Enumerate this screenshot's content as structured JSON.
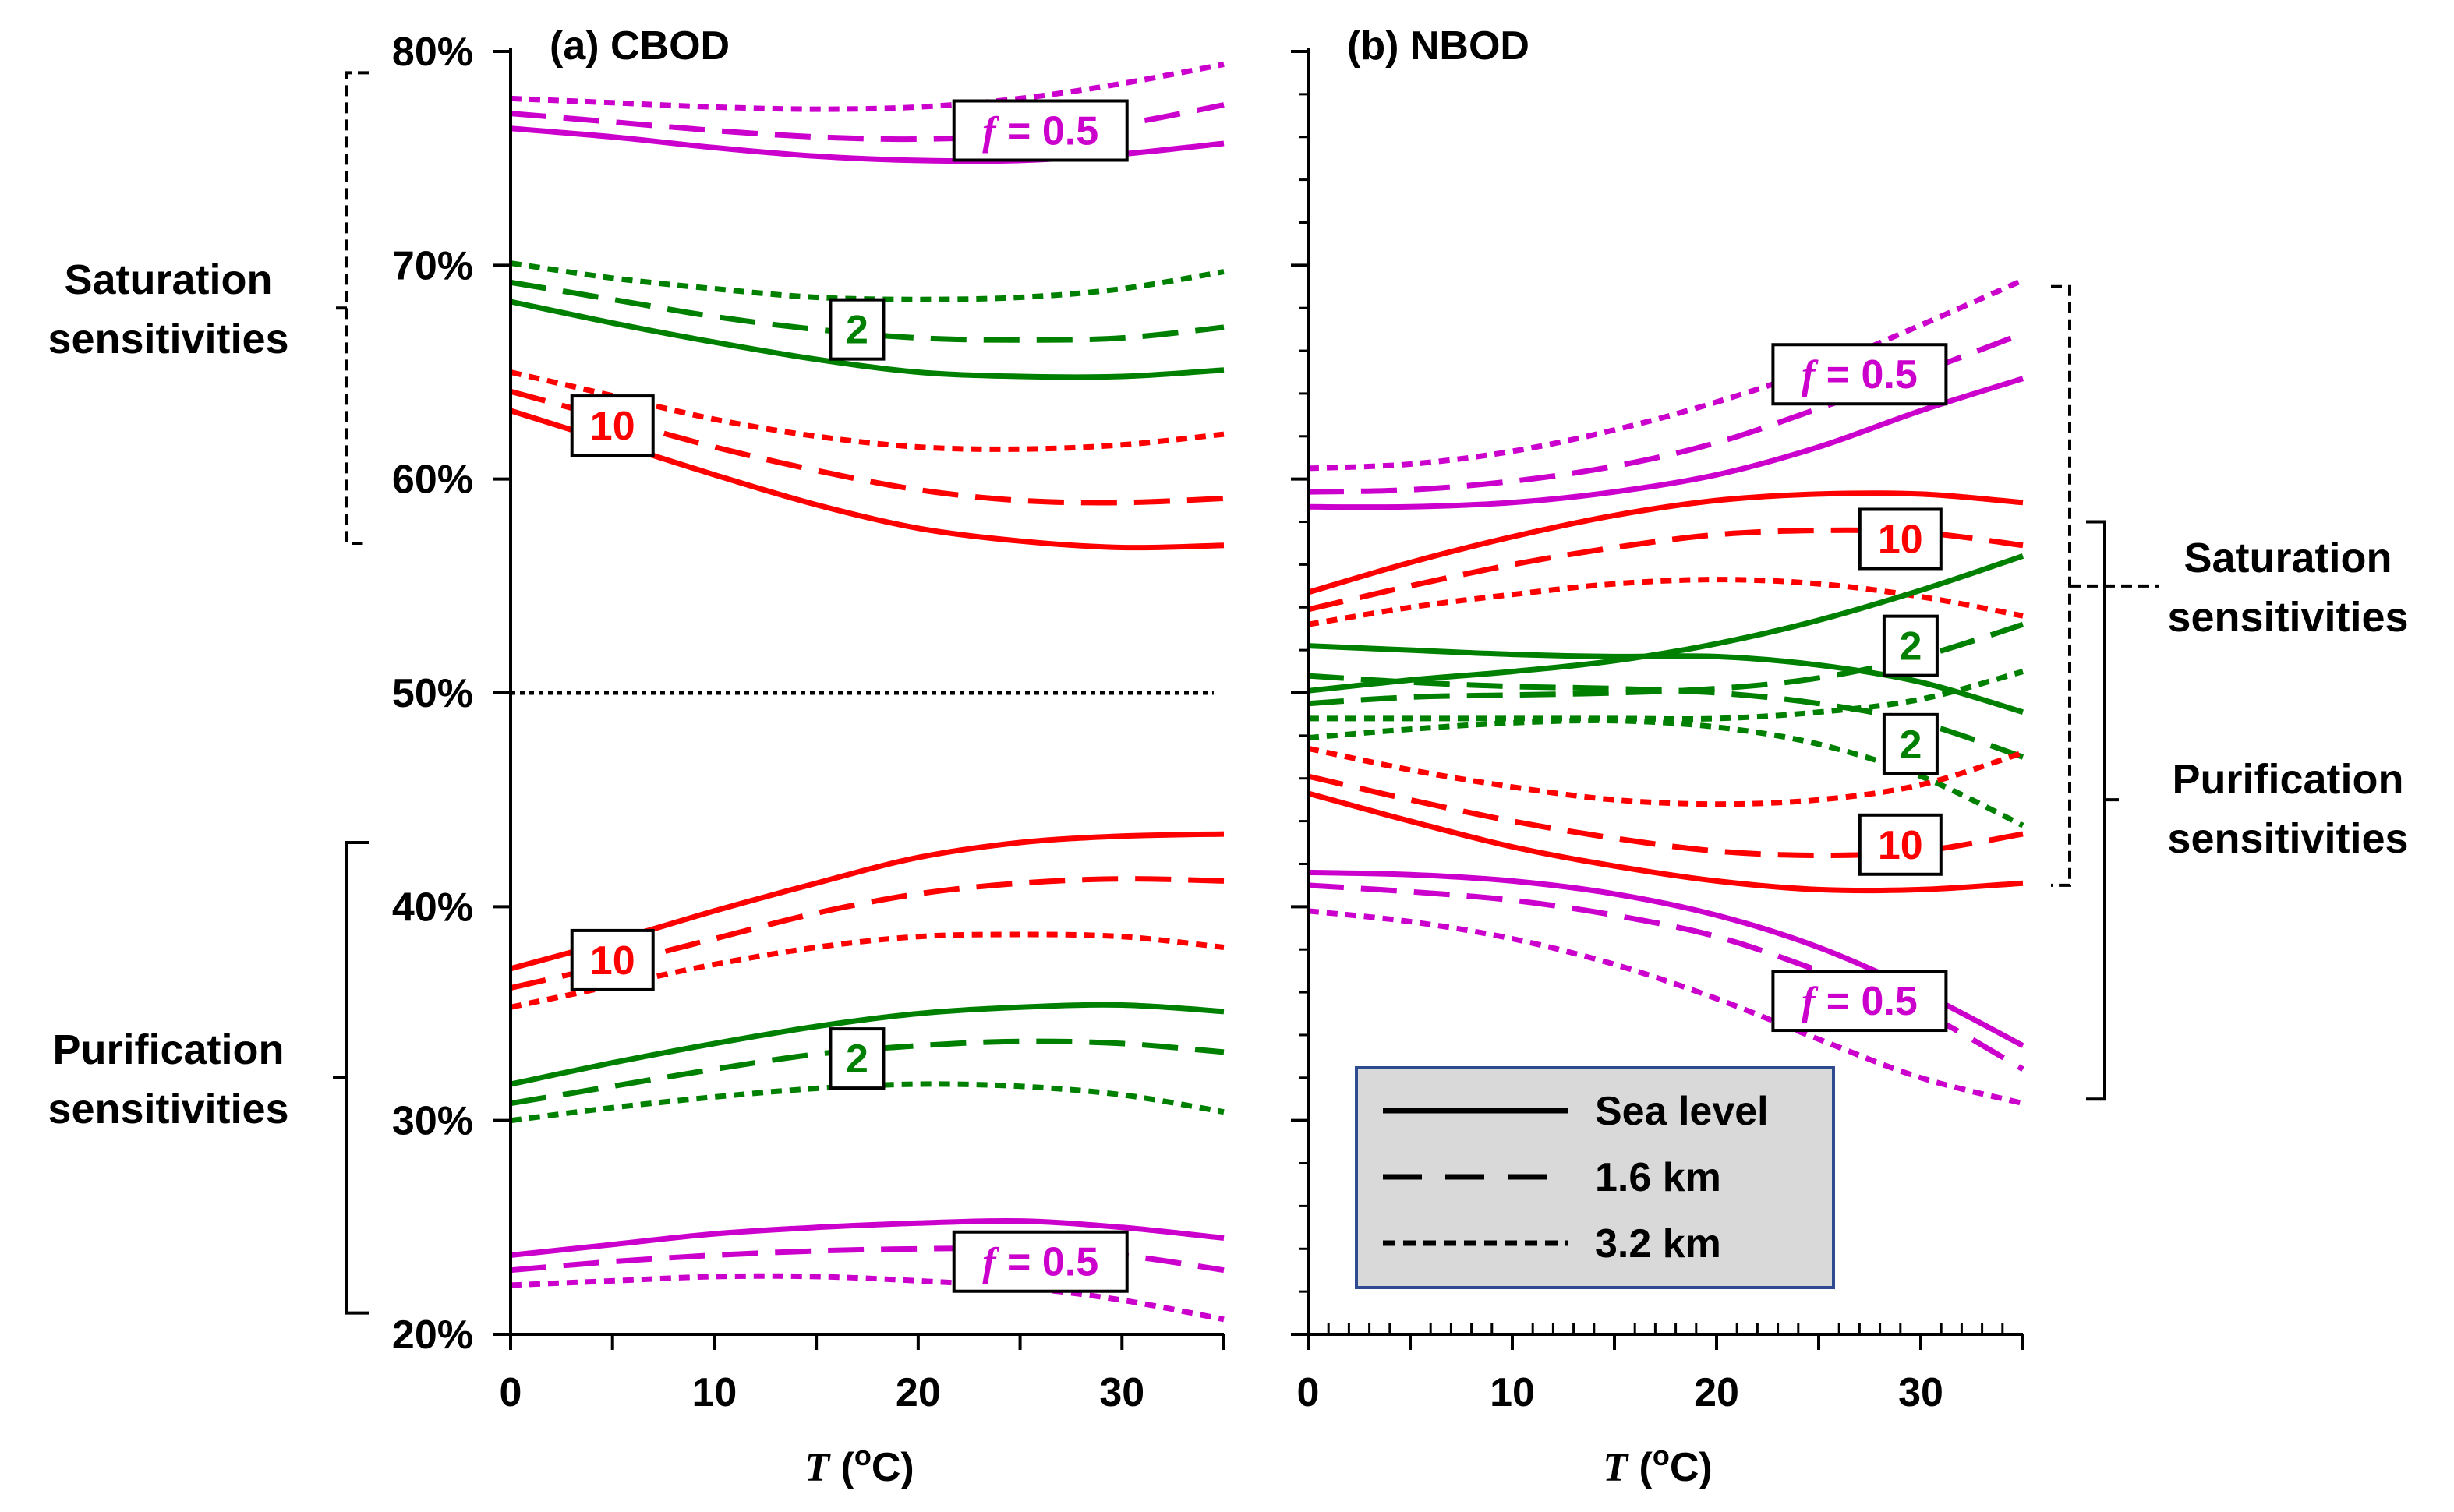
{
  "chart_data": [
    {
      "type": "line",
      "panel": "a",
      "title": "(a) CBOD",
      "xlabel": "T (oC)",
      "ylabel": "",
      "xlim": [
        0,
        35
      ],
      "ylim": [
        20,
        80
      ],
      "x_ticks": [
        0,
        10,
        20,
        30
      ],
      "y_ticks": [
        20,
        30,
        40,
        50,
        60,
        70,
        80
      ],
      "y_tick_labels": [
        "20%",
        "30%",
        "40%",
        "50%",
        "60%",
        "70%",
        "80%"
      ],
      "x": [
        0,
        5,
        10,
        15,
        20,
        25,
        30,
        35
      ],
      "reference_line": {
        "y": 50,
        "x_range": [
          0,
          34.5
        ],
        "style": "dotted"
      },
      "series": [
        {
          "name": "Saturation f=0.5 Sea level",
          "color": "#cc00cc",
          "style": "solid",
          "values": [
            76.4,
            76.0,
            75.5,
            75.1,
            74.9,
            74.9,
            75.2,
            75.7
          ]
        },
        {
          "name": "Saturation f=0.5 1.6 km",
          "color": "#cc00cc",
          "style": "dashed",
          "values": [
            77.1,
            76.7,
            76.3,
            76.0,
            75.9,
            76.1,
            76.6,
            77.5
          ]
        },
        {
          "name": "Saturation f=0.5 3.2 km",
          "color": "#cc00cc",
          "style": "dotted",
          "values": [
            77.8,
            77.6,
            77.4,
            77.3,
            77.4,
            77.8,
            78.5,
            79.4
          ]
        },
        {
          "name": "Saturation f=2 Sea level",
          "color": "#008000",
          "style": "solid",
          "values": [
            68.3,
            67.3,
            66.4,
            65.6,
            65.0,
            64.8,
            64.8,
            65.1
          ]
        },
        {
          "name": "Saturation f=2 1.6 km",
          "color": "#008000",
          "style": "dashed",
          "values": [
            69.2,
            68.4,
            67.6,
            67.0,
            66.6,
            66.5,
            66.6,
            67.1
          ]
        },
        {
          "name": "Saturation f=2 3.2 km",
          "color": "#008000",
          "style": "dotted",
          "values": [
            70.1,
            69.4,
            68.9,
            68.5,
            68.4,
            68.5,
            68.9,
            69.7
          ]
        },
        {
          "name": "Saturation f=10 Sea level",
          "color": "#ff0000",
          "style": "solid",
          "values": [
            63.2,
            61.7,
            60.2,
            58.8,
            57.7,
            57.1,
            56.8,
            56.9
          ]
        },
        {
          "name": "Saturation f=10 1.6 km",
          "color": "#ff0000",
          "style": "dashed",
          "values": [
            64.1,
            62.8,
            61.5,
            60.4,
            59.5,
            59.0,
            58.9,
            59.1
          ]
        },
        {
          "name": "Saturation f=10 3.2 km",
          "color": "#ff0000",
          "style": "dotted",
          "values": [
            65.0,
            63.9,
            62.8,
            62.0,
            61.5,
            61.4,
            61.6,
            62.1
          ]
        },
        {
          "name": "Purification f=10 Sea level",
          "color": "#ff0000",
          "style": "solid",
          "values": [
            37.1,
            38.4,
            39.8,
            41.1,
            42.3,
            43.0,
            43.3,
            43.4
          ]
        },
        {
          "name": "Purification f=10 1.6 km",
          "color": "#ff0000",
          "style": "dashed",
          "values": [
            36.2,
            37.3,
            38.5,
            39.7,
            40.6,
            41.1,
            41.3,
            41.2
          ]
        },
        {
          "name": "Purification f=10 3.2 km",
          "color": "#ff0000",
          "style": "dotted",
          "values": [
            35.3,
            36.3,
            37.3,
            38.1,
            38.6,
            38.7,
            38.6,
            38.1
          ]
        },
        {
          "name": "Purification f=2 Sea level",
          "color": "#008000",
          "style": "solid",
          "values": [
            31.7,
            32.7,
            33.6,
            34.4,
            35.0,
            35.3,
            35.4,
            35.1
          ]
        },
        {
          "name": "Purification f=2 1.6 km",
          "color": "#008000",
          "style": "dashed",
          "values": [
            30.8,
            31.6,
            32.4,
            33.1,
            33.5,
            33.7,
            33.6,
            33.2
          ]
        },
        {
          "name": "Purification f=2 3.2 km",
          "color": "#008000",
          "style": "dotted",
          "values": [
            30.0,
            30.6,
            31.1,
            31.5,
            31.7,
            31.6,
            31.2,
            30.4
          ]
        },
        {
          "name": "Purification f=0.5 Sea level",
          "color": "#cc00cc",
          "style": "solid",
          "values": [
            23.7,
            24.2,
            24.7,
            25.0,
            25.2,
            25.3,
            25.0,
            24.5
          ]
        },
        {
          "name": "Purification f=0.5 1.6 km",
          "color": "#cc00cc",
          "style": "dashed",
          "values": [
            23.0,
            23.4,
            23.7,
            23.9,
            24.0,
            24.0,
            23.7,
            23.0
          ]
        },
        {
          "name": "Purification f=0.5 3.2 km",
          "color": "#cc00cc",
          "style": "dotted",
          "values": [
            22.3,
            22.5,
            22.7,
            22.7,
            22.5,
            22.2,
            21.6,
            20.7
          ]
        }
      ],
      "box_labels": [
        {
          "text": "f = 0.5",
          "italic_prefix": "f",
          "color": "#cc00cc",
          "x": 26,
          "y": 76.3
        },
        {
          "text": "2",
          "color": "#008000",
          "x": 17,
          "y": 67.0
        },
        {
          "text": "10",
          "color": "#ff0000",
          "x": 5,
          "y": 62.5
        },
        {
          "text": "10",
          "color": "#ff0000",
          "x": 5,
          "y": 37.5
        },
        {
          "text": "2",
          "color": "#008000",
          "x": 17,
          "y": 32.9
        },
        {
          "text": "f = 0.5",
          "italic_prefix": "f",
          "color": "#cc00cc",
          "x": 26,
          "y": 23.4
        }
      ],
      "side_labels": [
        {
          "lines": [
            "Saturation",
            "sensitivities"
          ],
          "range": [
            57,
            79
          ]
        },
        {
          "lines": [
            "Purification",
            "sensitivities"
          ],
          "range": [
            21,
            43
          ]
        }
      ]
    },
    {
      "type": "line",
      "panel": "b",
      "title": "(b) NBOD",
      "xlabel": "T (oC)",
      "ylabel": "",
      "xlim": [
        0,
        35
      ],
      "ylim": [
        20,
        80
      ],
      "x_ticks": [
        0,
        10,
        20,
        30
      ],
      "y_ticks": [
        20,
        30,
        40,
        50,
        60,
        70,
        80
      ],
      "x": [
        0,
        5,
        10,
        15,
        20,
        25,
        30,
        35
      ],
      "series": [
        {
          "name": "Saturation f=0.5 Sea level",
          "color": "#cc00cc",
          "style": "solid",
          "values": [
            58.7,
            58.7,
            58.9,
            59.4,
            60.2,
            61.5,
            63.2,
            64.7
          ]
        },
        {
          "name": "Saturation f=0.5 1.6 km",
          "color": "#cc00cc",
          "style": "dashed",
          "values": [
            59.4,
            59.5,
            59.9,
            60.6,
            61.7,
            63.3,
            65.0,
            66.8
          ]
        },
        {
          "name": "Saturation f=0.5 3.2 km",
          "color": "#cc00cc",
          "style": "dotted",
          "values": [
            60.5,
            60.7,
            61.3,
            62.3,
            63.6,
            65.2,
            67.2,
            69.3
          ]
        },
        {
          "name": "Saturation f=10 Sea level",
          "color": "#ff0000",
          "style": "solid",
          "values": [
            54.7,
            56.1,
            57.3,
            58.3,
            59.0,
            59.3,
            59.3,
            58.9
          ]
        },
        {
          "name": "Saturation f=10 1.6 km",
          "color": "#ff0000",
          "style": "dashed",
          "values": [
            53.9,
            55.0,
            56.0,
            56.8,
            57.4,
            57.6,
            57.5,
            56.9
          ]
        },
        {
          "name": "Saturation f=10 3.2 km",
          "color": "#ff0000",
          "style": "dotted",
          "values": [
            53.2,
            54.0,
            54.6,
            55.1,
            55.3,
            55.1,
            54.5,
            53.6
          ]
        },
        {
          "name": "Saturation f=2 Sea level",
          "color": "#008000",
          "style": "solid",
          "values": [
            50.1,
            50.6,
            51.0,
            51.5,
            52.3,
            53.4,
            54.8,
            56.4
          ]
        },
        {
          "name": "Saturation f=2 1.6 km",
          "color": "#008000",
          "style": "dashed",
          "values": [
            49.5,
            49.8,
            49.9,
            50.0,
            50.2,
            50.7,
            51.7,
            53.2
          ]
        },
        {
          "name": "Saturation f=2 3.2 km",
          "color": "#008000",
          "style": "dotted",
          "values": [
            48.8,
            48.8,
            48.8,
            48.8,
            48.8,
            49.1,
            49.7,
            51.0
          ]
        },
        {
          "name": "Purification f=2 Sea level",
          "color": "#008000",
          "style": "solid",
          "values": [
            52.2,
            52.0,
            51.8,
            51.7,
            51.7,
            51.3,
            50.5,
            49.1
          ]
        },
        {
          "name": "Purification f=2 1.6 km",
          "color": "#008000",
          "style": "dashed",
          "values": [
            50.8,
            50.5,
            50.3,
            50.2,
            50.0,
            49.5,
            48.6,
            47.0
          ]
        },
        {
          "name": "Purification f=2 3.2 km",
          "color": "#008000",
          "style": "dotted",
          "values": [
            47.9,
            48.3,
            48.6,
            48.7,
            48.4,
            47.6,
            46.1,
            43.8
          ]
        },
        {
          "name": "Purification f=10 Sea level",
          "color": "#ff0000",
          "style": "solid",
          "values": [
            45.3,
            44.0,
            42.8,
            41.9,
            41.2,
            40.8,
            40.8,
            41.1
          ]
        },
        {
          "name": "Purification f=10 1.6 km",
          "color": "#ff0000",
          "style": "dashed",
          "values": [
            46.1,
            45.0,
            44.0,
            43.2,
            42.6,
            42.4,
            42.6,
            43.4
          ]
        },
        {
          "name": "Purification f=10 3.2 km",
          "color": "#ff0000",
          "style": "dotted",
          "values": [
            47.4,
            46.4,
            45.6,
            45.0,
            44.8,
            45.0,
            45.7,
            47.2
          ]
        },
        {
          "name": "Purification f=0.5 Sea level",
          "color": "#cc00cc",
          "style": "solid",
          "values": [
            41.6,
            41.5,
            41.2,
            40.6,
            39.6,
            38.1,
            36.0,
            33.5
          ]
        },
        {
          "name": "Purification f=0.5 1.6 km",
          "color": "#cc00cc",
          "style": "dashed",
          "values": [
            41.0,
            40.7,
            40.3,
            39.6,
            38.6,
            37.0,
            35.1,
            32.4
          ]
        },
        {
          "name": "Purification f=0.5 3.2 km",
          "color": "#cc00cc",
          "style": "dotted",
          "values": [
            39.8,
            39.3,
            38.5,
            37.3,
            35.7,
            33.8,
            32.0,
            30.8
          ]
        }
      ],
      "box_labels": [
        {
          "text": "f = 0.5",
          "italic_prefix": "f",
          "color": "#cc00cc",
          "x": 27,
          "y": 64.9
        },
        {
          "text": "10",
          "color": "#ff0000",
          "x": 29,
          "y": 57.2
        },
        {
          "text": "2",
          "color": "#008000",
          "x": 29.5,
          "y": 52.2
        },
        {
          "text": "2",
          "color": "#008000",
          "x": 29.5,
          "y": 47.6
        },
        {
          "text": "10",
          "color": "#ff0000",
          "x": 29,
          "y": 42.9
        },
        {
          "text": "f = 0.5",
          "italic_prefix": "f",
          "color": "#cc00cc",
          "x": 27,
          "y": 35.6
        }
      ],
      "side_labels": [
        {
          "lines": [
            "Saturation",
            "sensitivities"
          ],
          "range": [
            59,
            69
          ],
          "dashed_range": [
            41,
            69
          ]
        },
        {
          "lines": [
            "Purification",
            "sensitivities"
          ],
          "range": [
            31,
            58
          ]
        }
      ],
      "legend": {
        "placement": "bottom-left",
        "entries": [
          {
            "label": "Sea level",
            "style": "solid"
          },
          {
            "label": "1.6 km",
            "style": "dashed"
          },
          {
            "label": "3.2 km",
            "style": "dotted"
          }
        ]
      }
    }
  ]
}
